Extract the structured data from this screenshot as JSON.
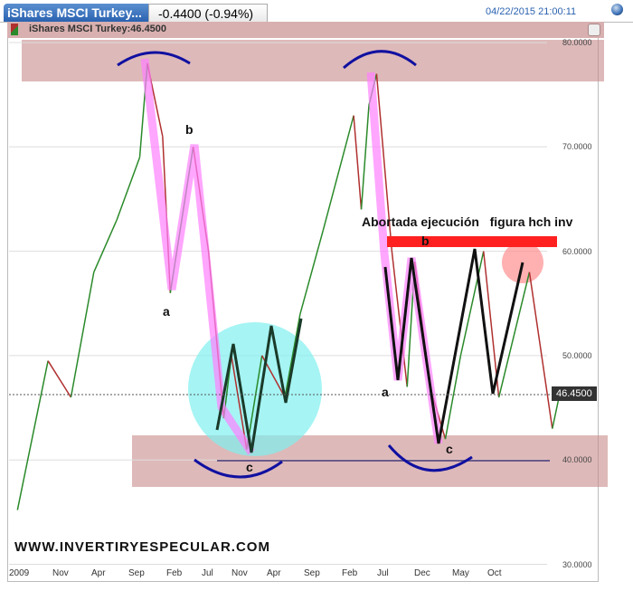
{
  "tab": {
    "title": "iShares MSCI Turkey...",
    "change": "-0.4400 (-0.94%)"
  },
  "timestamp": "04/22/2015 21:00:11",
  "header": {
    "label": "iShares MSCI Turkey:46.4500"
  },
  "last_price_label": "46.4500",
  "watermark": "WWW.INVERTIRYESPECULAR.COM",
  "annotations": {
    "a1": "a",
    "b1": "b",
    "c1": "c",
    "a2": "a",
    "b2": "b",
    "c2": "c",
    "note": "Abortada ejecución   figura hch inv"
  },
  "colors": {
    "up": "#2a8a2a",
    "down": "#b03030",
    "zone": "#c88a8a",
    "pink": "#ff80ff",
    "cyan": "#80f0f0",
    "red_line": "#ff2020"
  },
  "chart_data": {
    "type": "line",
    "title": "iShares MSCI Turkey",
    "ylim": [
      30,
      80
    ],
    "y_ticks": [
      "80.0000",
      "70.0000",
      "60.0000",
      "50.0000",
      "40.0000",
      "30.0000"
    ],
    "x_ticks": [
      "2009",
      "Nov",
      "Apr",
      "Sep",
      "Feb",
      "Jul",
      "Nov",
      "Apr",
      "Sep",
      "Feb",
      "Jul",
      "Dec",
      "May",
      "Oct"
    ],
    "x": [
      "2009-05",
      "2009-09",
      "2009-12",
      "2010-03",
      "2010-06",
      "2010-09",
      "2010-10",
      "2010-12",
      "2011-01",
      "2011-04",
      "2011-06",
      "2011-08",
      "2011-09",
      "2011-11",
      "2012-01",
      "2012-04",
      "2012-06",
      "2012-09",
      "2013-01",
      "2013-02",
      "2013-03",
      "2013-04",
      "2013-06",
      "2013-08",
      "2013-09",
      "2013-11",
      "2014-01",
      "2014-03",
      "2014-06",
      "2014-08",
      "2014-12",
      "2015-02",
      "2015-03",
      "2015-04"
    ],
    "values": [
      35.2,
      49.5,
      46,
      58,
      63,
      69,
      78,
      71,
      56,
      70,
      60,
      44,
      50,
      41,
      50,
      46,
      54,
      62,
      73,
      64,
      74,
      77,
      60,
      47,
      59,
      47,
      42,
      50,
      60,
      46,
      58,
      48,
      43,
      46.45
    ],
    "last": 46.45
  }
}
